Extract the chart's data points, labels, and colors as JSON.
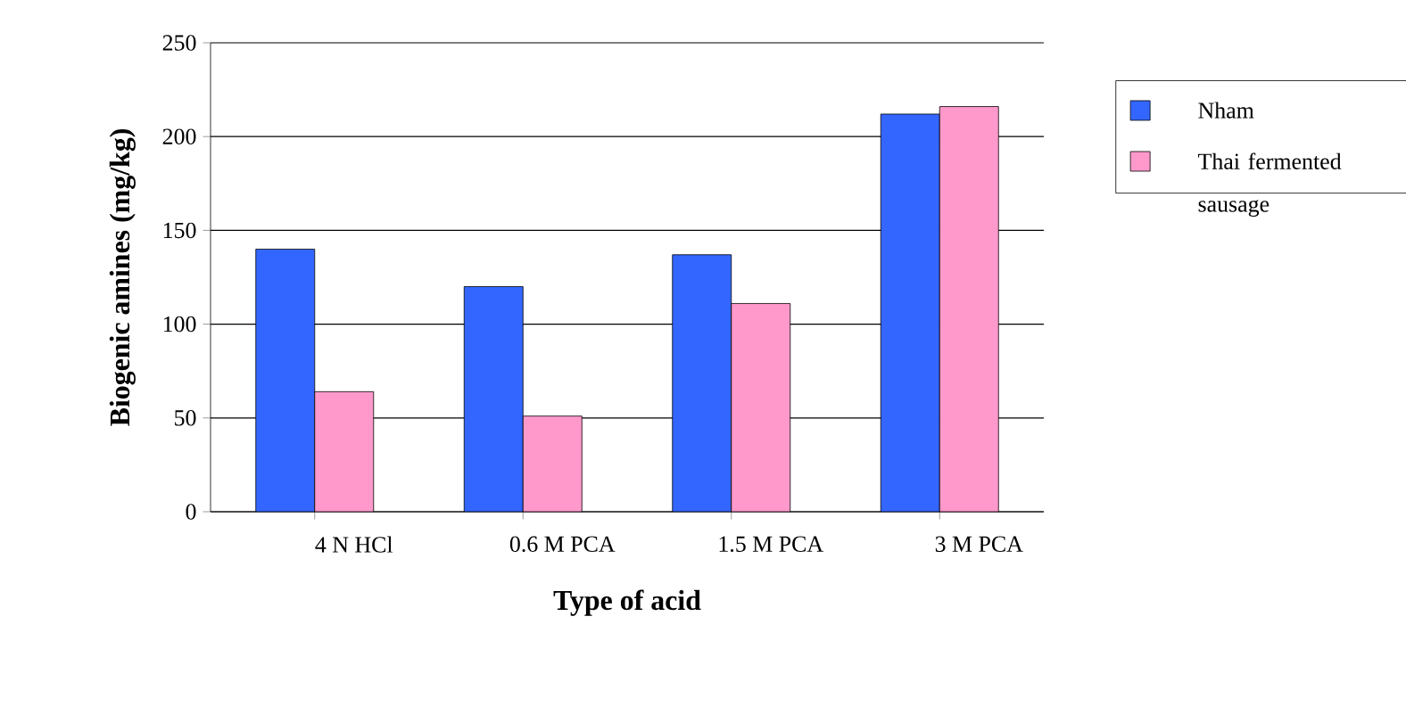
{
  "chart_data": {
    "type": "bar",
    "xlabel": "Type of acid",
    "ylabel": "Biogenic amines (mg/kg)",
    "categories": [
      "4 N HCl",
      "0.6 M PCA",
      "1.5 M PCA",
      "3 M PCA"
    ],
    "series": [
      {
        "name": "Nham",
        "color": "#3366ff",
        "values": [
          140,
          120,
          137,
          212
        ]
      },
      {
        "name": "Thai fermented sausage",
        "color": "#ff99cc",
        "values": [
          64,
          51,
          111,
          216
        ]
      }
    ],
    "ylim": [
      0,
      250
    ],
    "yticks": [
      0,
      50,
      100,
      150,
      200,
      250
    ],
    "grid": "y",
    "legend": "right"
  }
}
